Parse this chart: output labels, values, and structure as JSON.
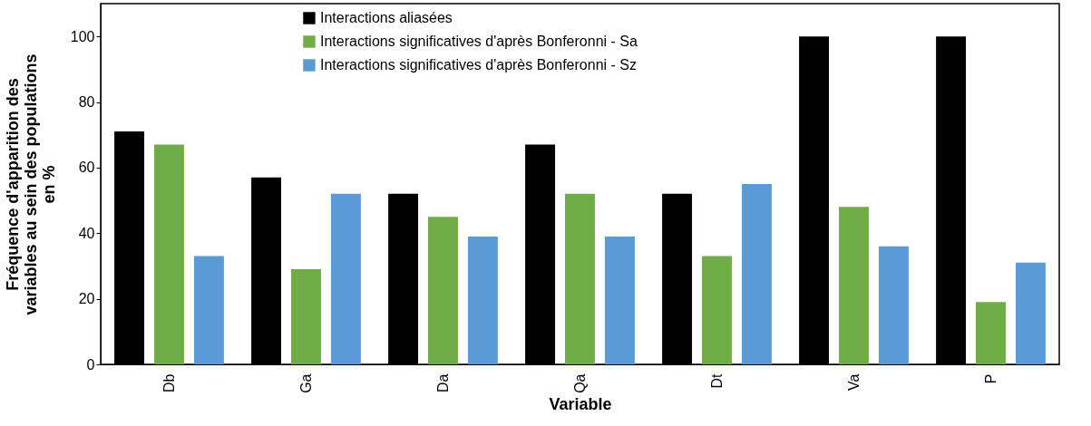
{
  "chart_data": {
    "type": "bar",
    "xlabel": "Variable",
    "ylabel": "Fréquence d'apparition des variables au sein des populations en %",
    "categories": [
      "Db",
      "Ga",
      "Da",
      "Qa",
      "Dt",
      "Va",
      "P"
    ],
    "series": [
      {
        "name": "Interactions aliasées",
        "color": "#000000",
        "values": [
          71,
          57,
          52,
          67,
          52,
          100,
          100
        ]
      },
      {
        "name": "Interactions significatives d'après Bonferonni - Sa",
        "color": "#70ad47",
        "values": [
          67,
          29,
          45,
          52,
          33,
          48,
          19
        ]
      },
      {
        "name": "Interactions significatives d'après Bonferonni - Sz",
        "color": "#5b9bd5",
        "values": [
          33,
          52,
          39,
          39,
          55,
          36,
          31
        ]
      }
    ],
    "ylim": [
      0,
      110
    ],
    "yticks": [
      0,
      20,
      40,
      60,
      80,
      100
    ],
    "grid": false,
    "legend": "top"
  }
}
